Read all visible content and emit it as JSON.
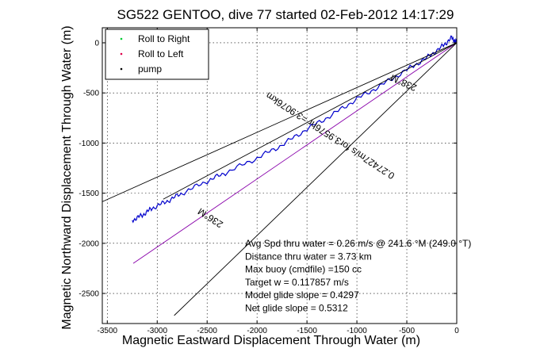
{
  "chart_data": {
    "type": "line",
    "title": "SG522 GENTOO, dive 77 started 02-Feb-2012 14:17:29",
    "xlabel": "Magnetic Eastward Displacement Through Water (m)",
    "ylabel": "Magnetic Northward Displacement Through Water (m)",
    "xlim": [
      -3550,
      0
    ],
    "ylim": [
      -2800,
      150
    ],
    "xticks": [
      -3500,
      -3000,
      -2500,
      -2000,
      -1500,
      -1000,
      -500,
      0
    ],
    "yticks": [
      0,
      -500,
      -1000,
      -1500,
      -2000,
      -2500
    ],
    "grid": true,
    "legend": {
      "placement": "top-left",
      "entries": [
        {
          "label": "Roll to Right",
          "color": "#00cc33",
          "marker": "point"
        },
        {
          "label": "Roll to Left",
          "color": "#e0004a",
          "marker": "point"
        },
        {
          "label": "pump",
          "color": "#000000",
          "marker": "point"
        }
      ]
    },
    "series": [
      {
        "color": "#0000cc",
        "style": "trajectory",
        "x": [
          -3250,
          -3150,
          -3050,
          -2900,
          -2750,
          -2500,
          -2300,
          -2000,
          -1750,
          -1500,
          -1250,
          -1000,
          -750,
          -500,
          -300,
          -150,
          -50,
          0
        ],
        "y": [
          -1770,
          -1720,
          -1650,
          -1580,
          -1500,
          -1380,
          -1290,
          -1150,
          -1020,
          -860,
          -720,
          -560,
          -420,
          -270,
          -150,
          -40,
          50,
          0
        ]
      },
      {
        "color": "#8800aa",
        "style": "line",
        "x": [
          -3240,
          0
        ],
        "y": [
          -2200,
          0
        ]
      },
      {
        "color": "#000000",
        "style": "line",
        "x": [
          -3550,
          0
        ],
        "y": [
          -1585,
          0
        ]
      },
      {
        "color": "#000000",
        "style": "line",
        "x": [
          -2940,
          0
        ],
        "y": [
          -1560,
          0
        ]
      },
      {
        "color": "#000000",
        "style": "line",
        "x": [
          -2830,
          0
        ],
        "y": [
          -2720,
          0
        ]
      }
    ],
    "annotations": [
      {
        "text": "236°M",
        "x": -2450,
        "y": -1720,
        "angle_deg": -33
      },
      {
        "text": "238°M",
        "x": -520,
        "y": -370,
        "angle_deg": -24
      },
      {
        "text": "0.27427m/s for3.9576hr =3.9076km",
        "x": -1250,
        "y": -900,
        "angle_deg": -33
      }
    ],
    "stats": [
      "Avg Spd thru water = 0.26 m/s @ 241.6   °M (249.0 °T)",
      "Distance thru water = 3.73 km",
      "Max buoy (cmdfile) =150 cc",
      "Target w = 0.117857 m/s",
      "Model glide slope = 0.4297",
      "Net glide slope = 0.5312"
    ]
  }
}
